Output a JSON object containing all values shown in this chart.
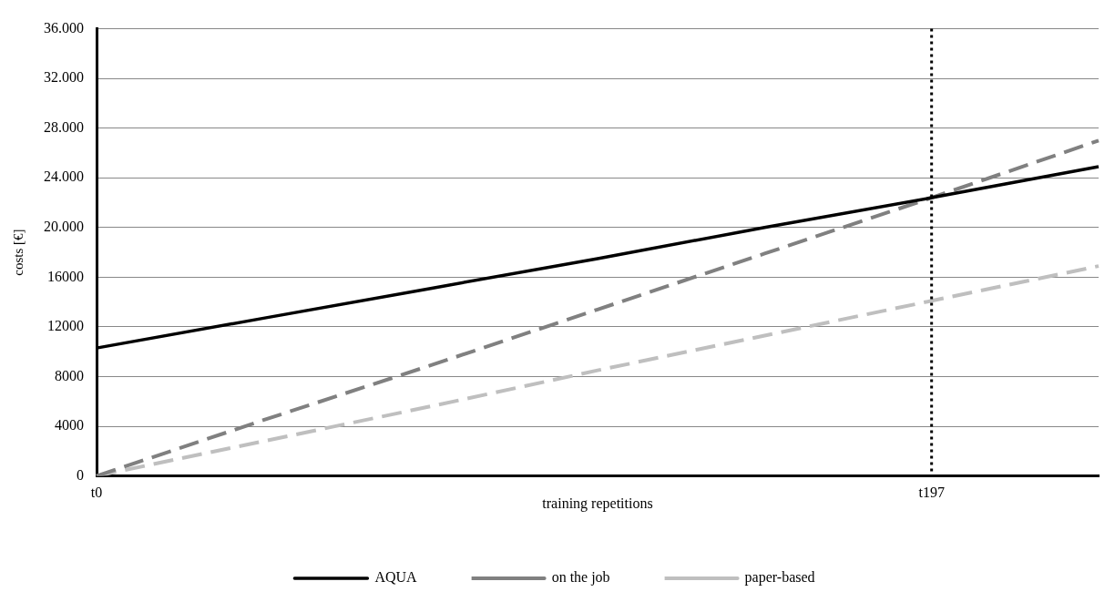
{
  "chart_data": {
    "type": "line",
    "xlabel": "training repetitions",
    "ylabel": "costs [€]",
    "categories": [
      "t0",
      null,
      null,
      null,
      null,
      "t197",
      null
    ],
    "series": [
      {
        "name": "AQUA",
        "color": "#000000",
        "values": [
          10300,
          12700,
          15100,
          17500,
          20000,
          22400,
          24900
        ],
        "line_style": "solid"
      },
      {
        "name": "on the job",
        "color": "#808080",
        "values": [
          0,
          4500,
          8900,
          13400,
          17900,
          22400,
          27000
        ],
        "line_style": "dashed"
      },
      {
        "name": "paper-based",
        "color": "#bfbfbf",
        "values": [
          0,
          2800,
          5600,
          8500,
          11300,
          14100,
          16900
        ],
        "line_style": "dashed"
      }
    ],
    "ylim": [
      0,
      36000
    ],
    "yticks": [
      0,
      4000,
      8000,
      12000,
      16000,
      {
        "value": 20000,
        "label": "20.000"
      },
      {
        "value": 24000,
        "label": "24.000"
      },
      {
        "value": 28000,
        "label": "28.000"
      },
      {
        "value": 32000,
        "label": "32.000"
      },
      {
        "value": 36000,
        "label": "36.000"
      }
    ],
    "ref_lines": [
      {
        "axis": "x",
        "value": "t197",
        "color": "#000000",
        "line_style": "dotted"
      }
    ],
    "grid": "y",
    "legend": "bottom",
    "marker": "none"
  }
}
